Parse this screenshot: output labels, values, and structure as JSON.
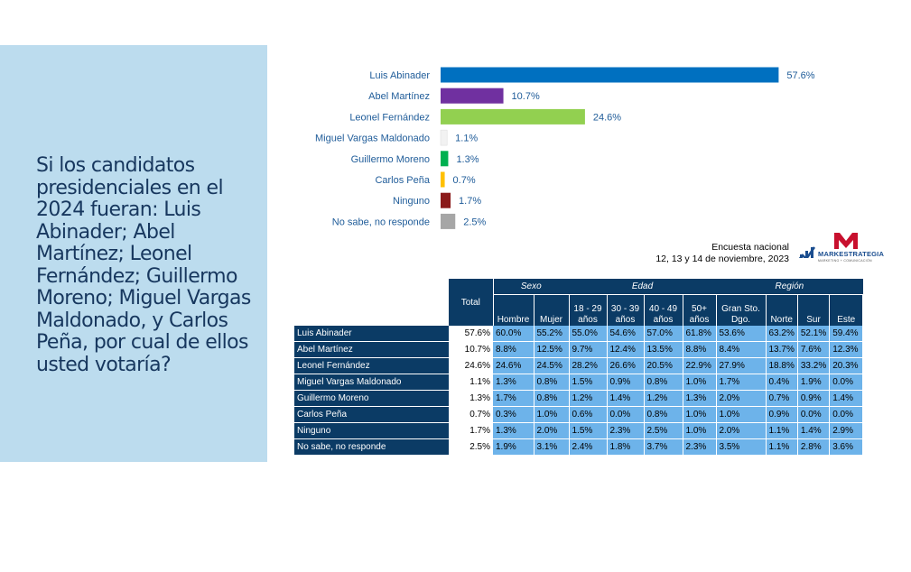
{
  "question": "Si los candidatos presidenciales en el 2024 fueran: Luis Abinader; Abel Martínez; Leonel Fernández; Guillermo Moreno; Miguel Vargas Maldonado, y Carlos Peña, por cual de ellos usted votaría?",
  "survey": {
    "line1": "Encuesta nacional",
    "line2": "12, 13 y 14 de noviembre, 2023"
  },
  "logo": {
    "text": "MARKESTRATEGIA",
    "sub": "MARKETING + COMUNICACIÓN"
  },
  "chart_data": {
    "type": "bar",
    "orientation": "horizontal",
    "categories": [
      "Luis Abinader",
      "Abel Martínez",
      "Leonel Fernández",
      "Miguel Vargas Maldonado",
      "Guillermo Moreno",
      "Carlos Peña",
      "Ninguno",
      "No sabe, no responde"
    ],
    "values": [
      57.6,
      10.7,
      24.6,
      1.1,
      1.3,
      0.7,
      1.7,
      2.5
    ],
    "value_labels": [
      "57.6%",
      "10.7%",
      "24.6%",
      "1.1%",
      "1.3%",
      "0.7%",
      "1.7%",
      "2.5%"
    ],
    "colors": [
      "#0070c0",
      "#7030a0",
      "#92d050",
      "#f2f2f2",
      "#00b050",
      "#ffc000",
      "#8b1a1a",
      "#a6a6a6"
    ],
    "xlim": [
      0,
      60
    ],
    "grid": false
  },
  "table": {
    "total_header": "Total",
    "groups": [
      "Sexo",
      "Edad",
      "Región"
    ],
    "columns": [
      [
        "Hombre"
      ],
      [
        "Mujer"
      ],
      [
        "18 - 29",
        "años"
      ],
      [
        "30 - 39",
        "años"
      ],
      [
        "40 - 49",
        "años"
      ],
      [
        "50+",
        "años"
      ],
      [
        "Gran Sto.",
        "Dgo."
      ],
      [
        "Norte"
      ],
      [
        "Sur"
      ],
      [
        "Este"
      ]
    ],
    "rows": [
      {
        "label": "Luis Abinader",
        "total": "57.6%",
        "values": [
          "60.0%",
          "55.2%",
          "55.0%",
          "54.6%",
          "57.0%",
          "61.8%",
          "53.6%",
          "63.2%",
          "52.1%",
          "59.4%"
        ]
      },
      {
        "label": "Abel Martínez",
        "total": "10.7%",
        "values": [
          "8.8%",
          "12.5%",
          "9.7%",
          "12.4%",
          "13.5%",
          "8.8%",
          "8.4%",
          "13.7%",
          "7.6%",
          "12.3%"
        ]
      },
      {
        "label": "Leonel Fernández",
        "total": "24.6%",
        "values": [
          "24.6%",
          "24.5%",
          "28.2%",
          "26.6%",
          "20.5%",
          "22.9%",
          "27.9%",
          "18.8%",
          "33.2%",
          "20.3%"
        ]
      },
      {
        "label": "Miguel Vargas Maldonado",
        "total": "1.1%",
        "values": [
          "1.3%",
          "0.8%",
          "1.5%",
          "0.9%",
          "0.8%",
          "1.0%",
          "1.7%",
          "0.4%",
          "1.9%",
          "0.0%"
        ]
      },
      {
        "label": "Guillermo Moreno",
        "total": "1.3%",
        "values": [
          "1.7%",
          "0.8%",
          "1.2%",
          "1.4%",
          "1.2%",
          "1.3%",
          "2.0%",
          "0.7%",
          "0.9%",
          "1.4%"
        ]
      },
      {
        "label": "Carlos Peña",
        "total": "0.7%",
        "values": [
          "0.3%",
          "1.0%",
          "0.6%",
          "0.0%",
          "0.8%",
          "1.0%",
          "1.0%",
          "0.9%",
          "0.0%",
          "0.0%"
        ]
      },
      {
        "label": "Ninguno",
        "total": "1.7%",
        "values": [
          "1.3%",
          "2.0%",
          "1.5%",
          "2.3%",
          "2.5%",
          "1.0%",
          "2.0%",
          "1.1%",
          "1.4%",
          "2.9%"
        ]
      },
      {
        "label": "No sabe, no responde",
        "total": "2.5%",
        "values": [
          "1.9%",
          "3.1%",
          "2.4%",
          "1.8%",
          "3.7%",
          "2.3%",
          "3.5%",
          "1.1%",
          "2.8%",
          "3.6%"
        ]
      }
    ]
  }
}
